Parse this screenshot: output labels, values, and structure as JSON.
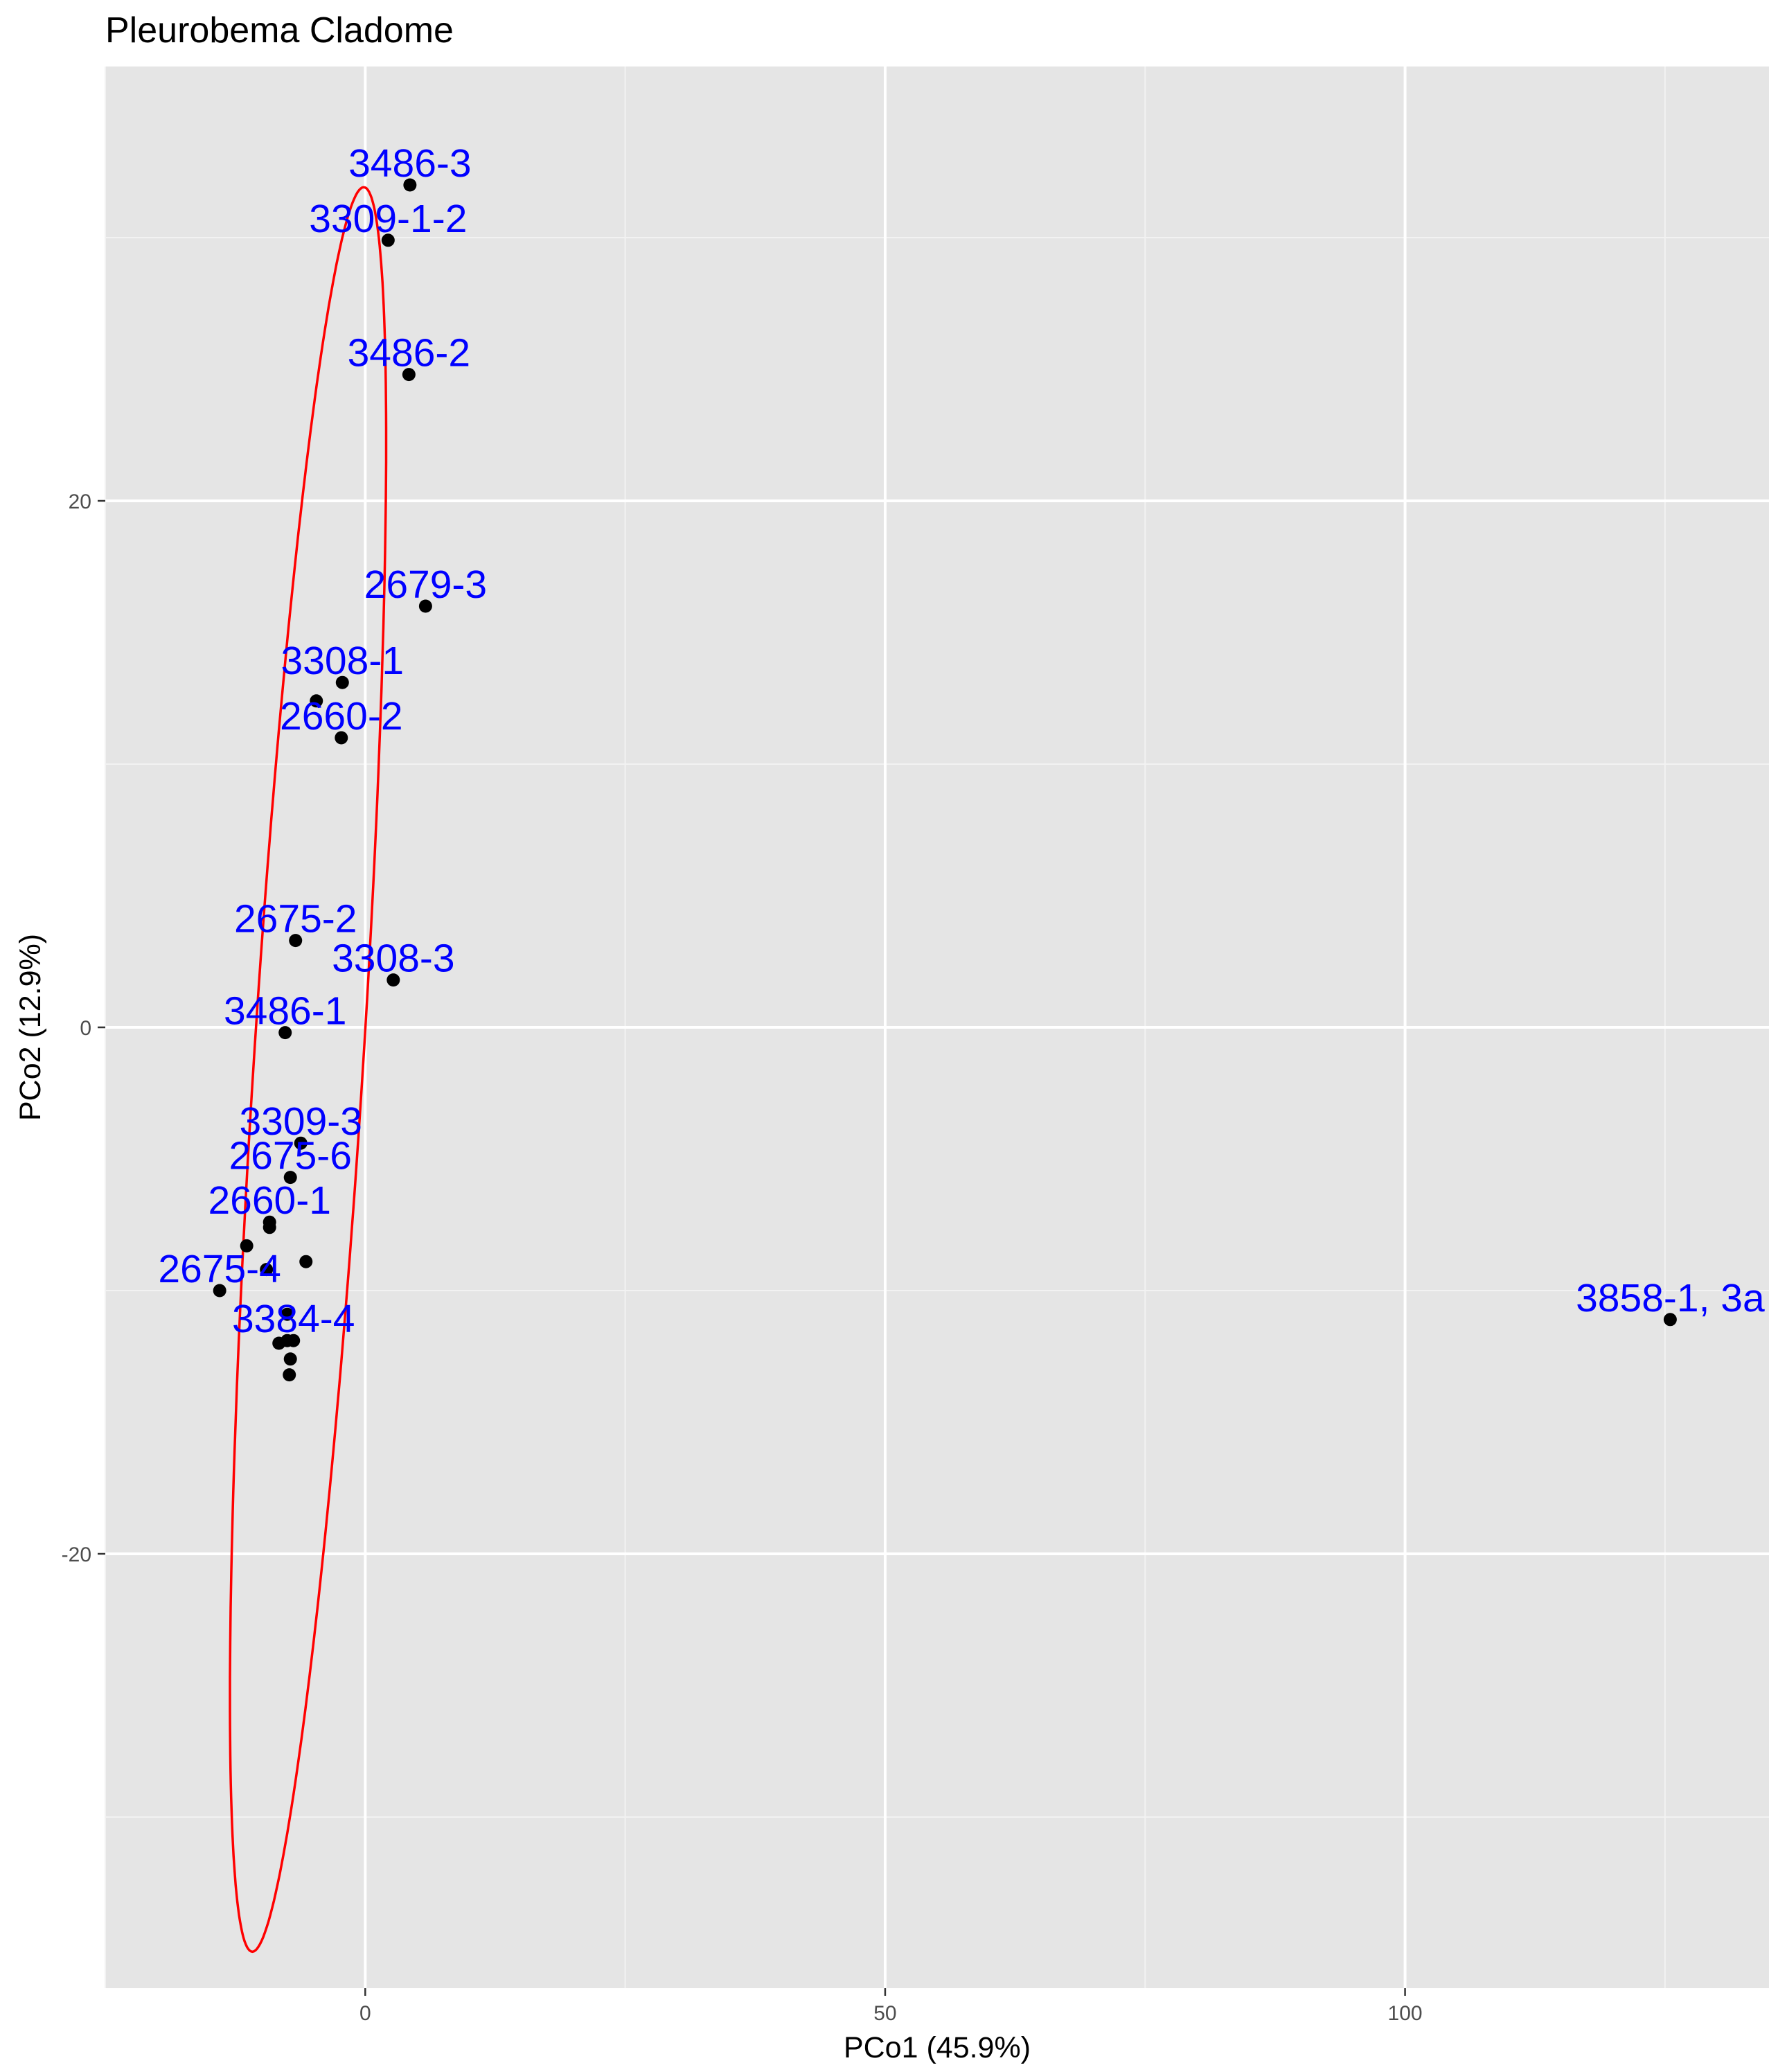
{
  "chart_data": {
    "type": "scatter",
    "title": "Pleurobema Cladome",
    "xlabel": "PCo1 (45.9%)",
    "ylabel": "PCo2 (12.9%)",
    "xlim": [
      -25,
      135
    ],
    "ylim": [
      -36.5,
      36.5
    ],
    "xticks": [
      0,
      50,
      100
    ],
    "xtick_labels": [
      "0",
      "50",
      "100"
    ],
    "yticks": [
      -20,
      0,
      20
    ],
    "ytick_labels": [
      "-20",
      "0",
      "20"
    ],
    "grid": true,
    "colors": {
      "panel_background": "#e5e5e5",
      "grid_major": "#ffffff",
      "grid_minor": "#f2f2f2",
      "point": "#000000",
      "label": "#0000ff",
      "ellipse": "#ff0000",
      "tick_label": "#4d4d4d"
    },
    "points": [
      {
        "x": 4.3,
        "y": 32.0
      },
      {
        "x": 2.2,
        "y": 29.9
      },
      {
        "x": 4.2,
        "y": 24.8
      },
      {
        "x": 5.8,
        "y": 16.0
      },
      {
        "x": -2.2,
        "y": 13.1
      },
      {
        "x": -4.7,
        "y": 12.4
      },
      {
        "x": -2.3,
        "y": 11.0
      },
      {
        "x": -6.7,
        "y": 3.3
      },
      {
        "x": 2.7,
        "y": 1.8
      },
      {
        "x": -7.7,
        "y": -0.2
      },
      {
        "x": -6.2,
        "y": -4.4
      },
      {
        "x": -7.2,
        "y": -5.7
      },
      {
        "x": -9.2,
        "y": -7.4
      },
      {
        "x": -9.2,
        "y": -7.6
      },
      {
        "x": -11.4,
        "y": -8.3
      },
      {
        "x": -9.5,
        "y": -9.2
      },
      {
        "x": -5.7,
        "y": -8.9
      },
      {
        "x": -14.0,
        "y": -10.0
      },
      {
        "x": -7.5,
        "y": -10.9
      },
      {
        "x": -8.3,
        "y": -12.0
      },
      {
        "x": -7.5,
        "y": -11.9
      },
      {
        "x": -6.9,
        "y": -11.9
      },
      {
        "x": -7.2,
        "y": -12.6
      },
      {
        "x": -7.3,
        "y": -13.2
      },
      {
        "x": 125.5,
        "y": -11.1
      }
    ],
    "labels": [
      {
        "text": "3486-3",
        "x": 4.3,
        "y": 32.0
      },
      {
        "text": "3309-1-2",
        "x": 2.2,
        "y": 29.9
      },
      {
        "text": "3486-2",
        "x": 4.2,
        "y": 24.8
      },
      {
        "text": "2679-3",
        "x": 5.8,
        "y": 16.0
      },
      {
        "text": "3308-1",
        "x": -2.2,
        "y": 13.1
      },
      {
        "text": "2660-2",
        "x": -2.3,
        "y": 11.0
      },
      {
        "text": "2675-2",
        "x": -6.7,
        "y": 3.3
      },
      {
        "text": "3308-3",
        "x": 2.7,
        "y": 1.8
      },
      {
        "text": "3486-1",
        "x": -7.7,
        "y": -0.2
      },
      {
        "text": "3309-3",
        "x": -6.2,
        "y": -4.4
      },
      {
        "text": "2675-6",
        "x": -7.2,
        "y": -5.7
      },
      {
        "text": "2660-1",
        "x": -9.2,
        "y": -7.4
      },
      {
        "text": "2675-4",
        "x": -14.0,
        "y": -10.0
      },
      {
        "text": "3384-4",
        "x": -6.9,
        "y": -11.9
      },
      {
        "text": "3858-1, 3a",
        "x": 125.5,
        "y": -11.1
      }
    ],
    "ellipse": {
      "center": [
        -5.5,
        -1.6
      ],
      "semi_major": 33.95,
      "semi_minor": 5.2,
      "angle_deg": 80.7
    }
  }
}
